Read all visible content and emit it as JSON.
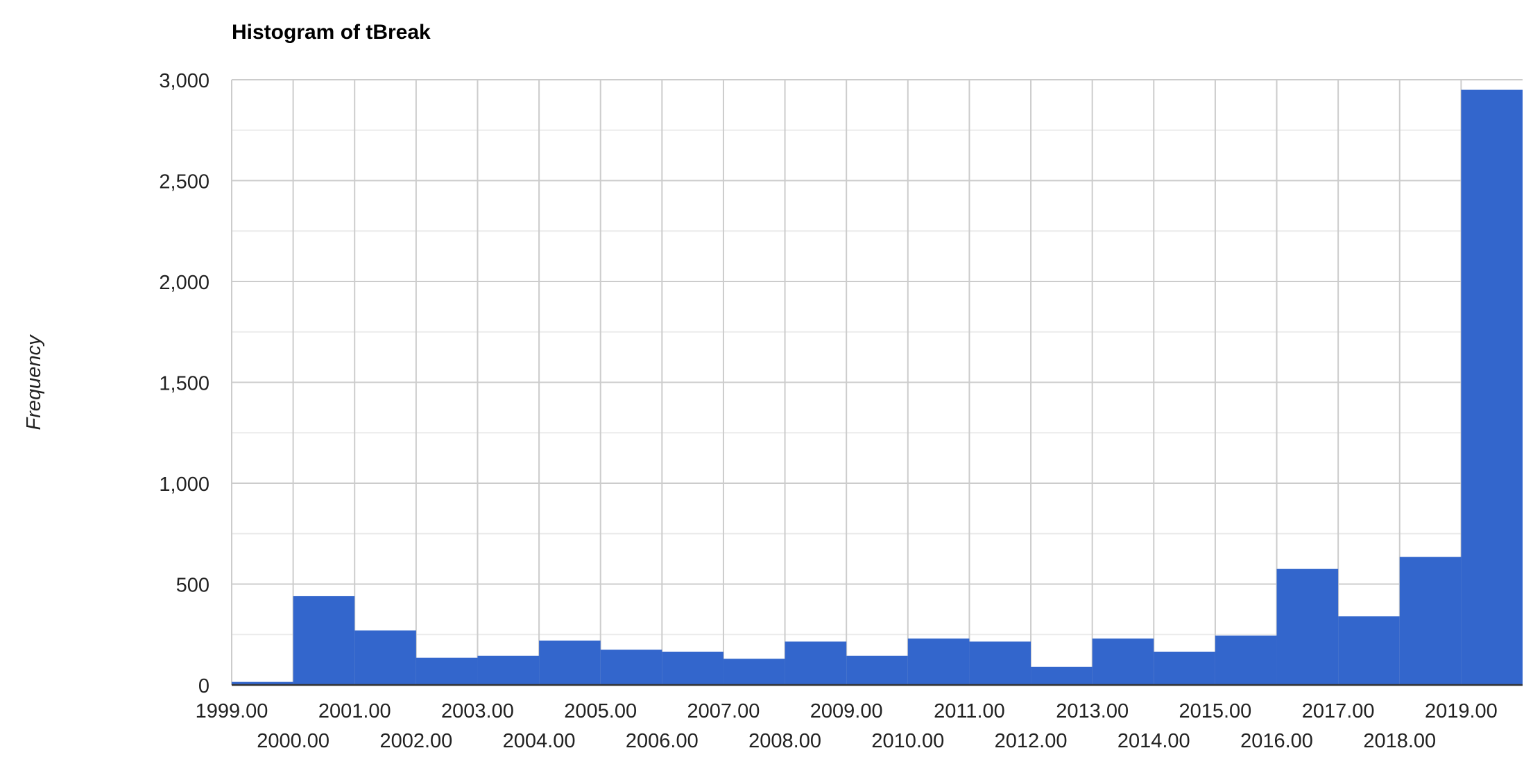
{
  "chart_data": {
    "type": "bar",
    "title": "Histogram of tBreak",
    "xlabel": "",
    "ylabel": "Frequency",
    "xlim": [
      1999,
      2020
    ],
    "ylim": [
      0,
      3000
    ],
    "grid": true,
    "legend": "none",
    "x_ticks_top": [
      "1999.00",
      "2001.00",
      "2003.00",
      "2005.00",
      "2007.00",
      "2009.00",
      "2011.00",
      "2013.00",
      "2015.00",
      "2017.00",
      "2019.00"
    ],
    "x_ticks_bottom": [
      "2000.00",
      "2002.00",
      "2004.00",
      "2006.00",
      "2008.00",
      "2010.00",
      "2012.00",
      "2014.00",
      "2016.00",
      "2018.00"
    ],
    "y_ticks": [
      "0",
      "500",
      "1,000",
      "1,500",
      "2,000",
      "2,500",
      "3,000"
    ],
    "bins": [
      {
        "start": 1999,
        "end": 2000,
        "count": 15
      },
      {
        "start": 2000,
        "end": 2001,
        "count": 440
      },
      {
        "start": 2001,
        "end": 2002,
        "count": 270
      },
      {
        "start": 2002,
        "end": 2003,
        "count": 135
      },
      {
        "start": 2003,
        "end": 2004,
        "count": 145
      },
      {
        "start": 2004,
        "end": 2005,
        "count": 220
      },
      {
        "start": 2005,
        "end": 2006,
        "count": 175
      },
      {
        "start": 2006,
        "end": 2007,
        "count": 165
      },
      {
        "start": 2007,
        "end": 2008,
        "count": 130
      },
      {
        "start": 2008,
        "end": 2009,
        "count": 215
      },
      {
        "start": 2009,
        "end": 2010,
        "count": 145
      },
      {
        "start": 2010,
        "end": 2011,
        "count": 230
      },
      {
        "start": 2011,
        "end": 2012,
        "count": 215
      },
      {
        "start": 2012,
        "end": 2013,
        "count": 90
      },
      {
        "start": 2013,
        "end": 2014,
        "count": 230
      },
      {
        "start": 2014,
        "end": 2015,
        "count": 165
      },
      {
        "start": 2015,
        "end": 2016,
        "count": 245
      },
      {
        "start": 2016,
        "end": 2017,
        "count": 575
      },
      {
        "start": 2017,
        "end": 2018,
        "count": 340
      },
      {
        "start": 2018,
        "end": 2019,
        "count": 635
      },
      {
        "start": 2019,
        "end": 2020,
        "count": 2950
      }
    ],
    "colors": {
      "bar": "#3366cc",
      "grid_major": "#cccccc",
      "grid_minor": "#ebebeb",
      "axis": "#333333",
      "text": "#222222"
    }
  }
}
